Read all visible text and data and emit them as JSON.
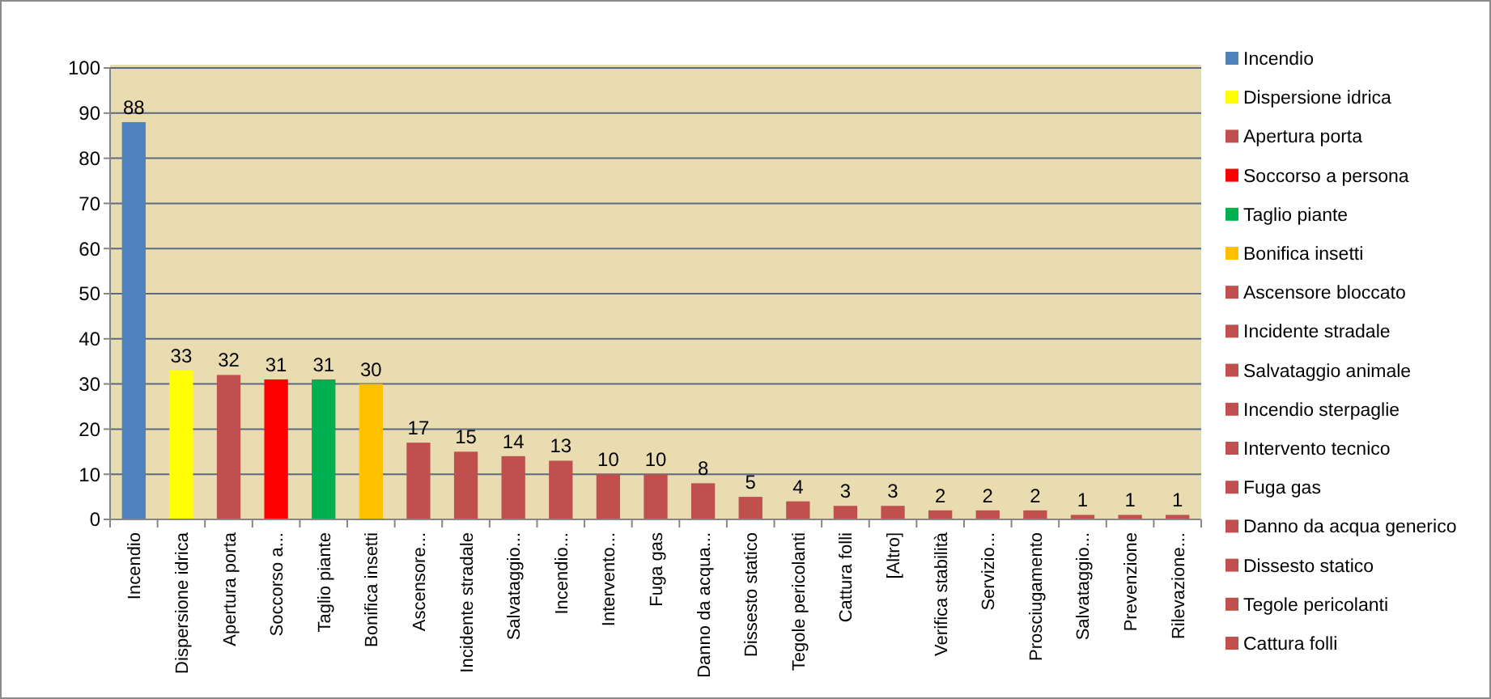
{
  "chart_data": {
    "type": "bar",
    "categories": [
      "Incendio",
      "Dispersione idrica",
      "Apertura porta",
      "Soccorso a...",
      "Taglio piante",
      "Bonifica insetti",
      "Ascensore...",
      "Incidente stradale",
      "Salvataggio...",
      "Incendio...",
      "Intervento...",
      "Fuga gas",
      "Danno da acqua...",
      "Dissesto statico",
      "Tegole pericolanti",
      "Cattura folli",
      "[Altro]",
      "Verifica stabilità",
      "Servizio...",
      "Prosciugamento",
      "Salvataggio...",
      "Prevenzione",
      "Rilevazione..."
    ],
    "series": [
      {
        "name": "Incendio",
        "color": "#4f81bd",
        "values": [
          88,
          null,
          null,
          null,
          null,
          null,
          null,
          null,
          null,
          null,
          null,
          null,
          null,
          null,
          null,
          null,
          null,
          null,
          null,
          null,
          null,
          null,
          null
        ]
      },
      {
        "name": "Dispersione idrica",
        "color": "#ffff00",
        "values": [
          null,
          33,
          null,
          null,
          null,
          null,
          null,
          null,
          null,
          null,
          null,
          null,
          null,
          null,
          null,
          null,
          null,
          null,
          null,
          null,
          null,
          null,
          null
        ]
      },
      {
        "name": "Apertura porta",
        "color": "#c0504d",
        "values": [
          null,
          null,
          32,
          null,
          null,
          null,
          null,
          null,
          null,
          null,
          null,
          null,
          null,
          null,
          null,
          null,
          null,
          null,
          null,
          null,
          null,
          null,
          null
        ]
      },
      {
        "name": "Soccorso a persona",
        "color": "#ff0000",
        "values": [
          null,
          null,
          null,
          31,
          null,
          null,
          null,
          null,
          null,
          null,
          null,
          null,
          null,
          null,
          null,
          null,
          null,
          null,
          null,
          null,
          null,
          null,
          null
        ]
      },
      {
        "name": "Taglio piante",
        "color": "#00b050",
        "values": [
          null,
          null,
          null,
          null,
          31,
          null,
          null,
          null,
          null,
          null,
          null,
          null,
          null,
          null,
          null,
          null,
          null,
          null,
          null,
          null,
          null,
          null,
          null
        ]
      },
      {
        "name": "Bonifica insetti",
        "color": "#ffc000",
        "values": [
          null,
          null,
          null,
          null,
          null,
          30,
          null,
          null,
          null,
          null,
          null,
          null,
          null,
          null,
          null,
          null,
          null,
          null,
          null,
          null,
          null,
          null,
          null
        ]
      },
      {
        "name": "Ascensore bloccato",
        "color": "#c0504d",
        "values": [
          null,
          null,
          null,
          null,
          null,
          null,
          17,
          null,
          null,
          null,
          null,
          null,
          null,
          null,
          null,
          null,
          null,
          null,
          null,
          null,
          null,
          null,
          null
        ]
      },
      {
        "name": "Incidente stradale",
        "color": "#c0504d",
        "values": [
          null,
          null,
          null,
          null,
          null,
          null,
          null,
          15,
          null,
          null,
          null,
          null,
          null,
          null,
          null,
          null,
          null,
          null,
          null,
          null,
          null,
          null,
          null
        ]
      },
      {
        "name": "Salvataggio  animale",
        "color": "#c0504d",
        "values": [
          null,
          null,
          null,
          null,
          null,
          null,
          null,
          null,
          14,
          null,
          null,
          null,
          null,
          null,
          null,
          null,
          null,
          null,
          null,
          null,
          null,
          null,
          null
        ]
      },
      {
        "name": "Incendio sterpaglie",
        "color": "#c0504d",
        "values": [
          null,
          null,
          null,
          null,
          null,
          null,
          null,
          null,
          null,
          13,
          null,
          null,
          null,
          null,
          null,
          null,
          null,
          null,
          null,
          null,
          null,
          null,
          null
        ]
      },
      {
        "name": "Intervento tecnico",
        "color": "#c0504d",
        "values": [
          null,
          null,
          null,
          null,
          null,
          null,
          null,
          null,
          null,
          null,
          10,
          null,
          null,
          null,
          null,
          null,
          null,
          null,
          null,
          null,
          null,
          null,
          null
        ]
      },
      {
        "name": "Fuga gas",
        "color": "#c0504d",
        "values": [
          null,
          null,
          null,
          null,
          null,
          null,
          null,
          null,
          null,
          null,
          null,
          10,
          null,
          null,
          null,
          null,
          null,
          null,
          null,
          null,
          null,
          null,
          null
        ]
      },
      {
        "name": "Danno da acqua generico",
        "color": "#c0504d",
        "values": [
          null,
          null,
          null,
          null,
          null,
          null,
          null,
          null,
          null,
          null,
          null,
          null,
          8,
          null,
          null,
          null,
          null,
          null,
          null,
          null,
          null,
          null,
          null
        ]
      },
      {
        "name": "Dissesto statico",
        "color": "#c0504d",
        "values": [
          null,
          null,
          null,
          null,
          null,
          null,
          null,
          null,
          null,
          null,
          null,
          null,
          null,
          5,
          null,
          null,
          null,
          null,
          null,
          null,
          null,
          null,
          null
        ]
      },
      {
        "name": "Tegole pericolanti",
        "color": "#c0504d",
        "values": [
          null,
          null,
          null,
          null,
          null,
          null,
          null,
          null,
          null,
          null,
          null,
          null,
          null,
          null,
          4,
          null,
          null,
          null,
          null,
          null,
          null,
          null,
          null
        ]
      },
      {
        "name": "Cattura folli",
        "color": "#c0504d",
        "values": [
          null,
          null,
          null,
          null,
          null,
          null,
          null,
          null,
          null,
          null,
          null,
          null,
          null,
          null,
          null,
          3,
          null,
          null,
          null,
          null,
          null,
          null,
          null
        ]
      },
      {
        "color": "#c0504d",
        "values": [
          null,
          null,
          null,
          null,
          null,
          null,
          null,
          null,
          null,
          null,
          null,
          null,
          null,
          null,
          null,
          null,
          3,
          null,
          null,
          null,
          null,
          null,
          null
        ]
      },
      {
        "color": "#c0504d",
        "values": [
          null,
          null,
          null,
          null,
          null,
          null,
          null,
          null,
          null,
          null,
          null,
          null,
          null,
          null,
          null,
          null,
          null,
          2,
          null,
          null,
          null,
          null,
          null
        ]
      },
      {
        "color": "#c0504d",
        "values": [
          null,
          null,
          null,
          null,
          null,
          null,
          null,
          null,
          null,
          null,
          null,
          null,
          null,
          null,
          null,
          null,
          null,
          null,
          2,
          null,
          null,
          null,
          null
        ]
      },
      {
        "color": "#c0504d",
        "values": [
          null,
          null,
          null,
          null,
          null,
          null,
          null,
          null,
          null,
          null,
          null,
          null,
          null,
          null,
          null,
          null,
          null,
          null,
          null,
          2,
          null,
          null,
          null
        ]
      },
      {
        "color": "#c0504d",
        "values": [
          null,
          null,
          null,
          null,
          null,
          null,
          null,
          null,
          null,
          null,
          null,
          null,
          null,
          null,
          null,
          null,
          null,
          null,
          null,
          null,
          1,
          null,
          null
        ]
      },
      {
        "color": "#c0504d",
        "values": [
          null,
          null,
          null,
          null,
          null,
          null,
          null,
          null,
          null,
          null,
          null,
          null,
          null,
          null,
          null,
          null,
          null,
          null,
          null,
          null,
          null,
          1,
          null
        ]
      },
      {
        "color": "#c0504d",
        "values": [
          null,
          null,
          null,
          null,
          null,
          null,
          null,
          null,
          null,
          null,
          null,
          null,
          null,
          null,
          null,
          null,
          null,
          null,
          null,
          null,
          null,
          null,
          1
        ]
      }
    ],
    "ylim": [
      0,
      100
    ],
    "yticks": [
      0,
      10,
      20,
      30,
      40,
      50,
      60,
      70,
      80,
      90,
      100
    ],
    "grid": "y",
    "legend": "right",
    "data_labels": true
  }
}
